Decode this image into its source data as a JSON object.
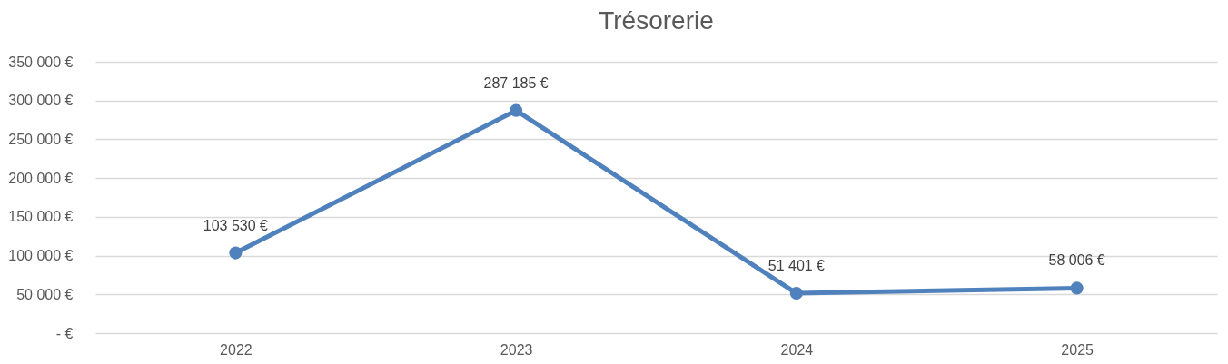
{
  "chart_data": {
    "type": "line",
    "title": "Trésorerie",
    "categories": [
      "2022",
      "2023",
      "2024",
      "2025"
    ],
    "series": [
      {
        "color": "#4f81bd",
        "values": [
          103530,
          287185,
          51401,
          58006
        ],
        "value_labels": [
          "103 530 €",
          "287 185 €",
          "51 401 €",
          "58 006 €"
        ]
      }
    ],
    "ylim": [
      0,
      350000
    ],
    "yticks": [
      {
        "value": 0,
        "label": "-   €"
      },
      {
        "value": 50000,
        "label": "50 000 €"
      },
      {
        "value": 100000,
        "label": "100 000 €"
      },
      {
        "value": 150000,
        "label": "150 000 €"
      },
      {
        "value": 200000,
        "label": "200 000 €"
      },
      {
        "value": 250000,
        "label": "250 000 €"
      },
      {
        "value": 300000,
        "label": "300 000 €"
      },
      {
        "value": 350000,
        "label": "350 000 €"
      }
    ],
    "grid": "y",
    "marker": "circle",
    "line_style": "solid"
  }
}
